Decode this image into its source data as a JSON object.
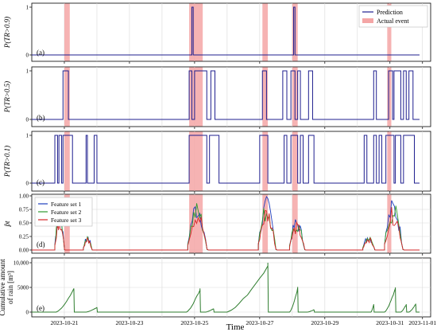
{
  "figure": {
    "xlabel": "Time",
    "x_ticks": [
      "2023-10-21",
      "2023-10-23",
      "2023-10-25",
      "2023-10-27",
      "2023-10-29",
      "2023-10-31",
      "2023-11-01"
    ],
    "x_range": [
      "2023-10-20 00:00",
      "2023-11-01 06:00"
    ]
  },
  "colors": {
    "prediction": "#1f1f8f",
    "event_band": "#f4a6a6",
    "set1": "#1f3fbf",
    "set2": "#2e9a2e",
    "set3": "#d62728",
    "rain": "#2e7d2e",
    "grid": "#d9d9d9"
  },
  "chart_data": [
    {
      "type": "line",
      "panel_label": "(a)",
      "ylabel": "P(TR>0.9)",
      "ylim": [
        0,
        1
      ],
      "y_ticks": [
        "0",
        "1"
      ],
      "legend": {
        "placement": "top-right",
        "entries": [
          "Prediction",
          "Actual event"
        ]
      },
      "event_bands": [
        [
          "10-21 00:00",
          "10-21 04:00"
        ],
        [
          "10-24 20:00",
          "10-25 06:00"
        ],
        [
          "10-27 02:00",
          "10-27 06:00"
        ],
        [
          "10-28 00:00",
          "10-28 04:00"
        ],
        [
          "10-30 22:00",
          "10-31 01:00"
        ]
      ],
      "steps": [
        [
          "10-24 22:00",
          "10-24 23:00"
        ],
        [
          "10-28 01:00",
          "10-28 02:00"
        ]
      ]
    },
    {
      "type": "line",
      "panel_label": "(b)",
      "ylabel": "P(TR>0.5)",
      "ylim": [
        0,
        1
      ],
      "y_ticks": [
        "0",
        "1"
      ],
      "event_bands": [
        [
          "10-21 00:00",
          "10-21 04:00"
        ],
        [
          "10-24 20:00",
          "10-25 06:00"
        ],
        [
          "10-27 02:00",
          "10-27 06:00"
        ],
        [
          "10-28 00:00",
          "10-28 04:00"
        ],
        [
          "10-30 22:00",
          "10-31 01:00"
        ]
      ],
      "steps": [
        [
          "10-20 23:00",
          "10-21 03:00"
        ],
        [
          "10-24 20:00",
          "10-24 22:00"
        ],
        [
          "10-25 00:00",
          "10-25 09:00"
        ],
        [
          "10-25 12:00",
          "10-25 15:00"
        ],
        [
          "10-27 02:00",
          "10-27 05:00"
        ],
        [
          "10-27 17:00",
          "10-27 20:00"
        ],
        [
          "10-27 23:00",
          "10-28 02:00"
        ],
        [
          "10-28 04:00",
          "10-28 06:00"
        ],
        [
          "10-28 12:00",
          "10-28 15:00"
        ],
        [
          "10-30 12:00",
          "10-30 14:00"
        ],
        [
          "10-30 23:00",
          "10-31 02:00"
        ],
        [
          "10-31 03:00",
          "10-31 08:00"
        ],
        [
          "10-31 10:00",
          "10-31 12:00"
        ],
        [
          "10-31 14:00",
          "10-31 17:00"
        ]
      ]
    },
    {
      "type": "line",
      "panel_label": "(c)",
      "ylabel": "P(TR>0.1)",
      "ylim": [
        0,
        1
      ],
      "y_ticks": [
        "0",
        "1"
      ],
      "event_bands": [
        [
          "10-21 00:00",
          "10-21 04:00"
        ],
        [
          "10-24 20:00",
          "10-25 06:00"
        ],
        [
          "10-27 02:00",
          "10-27 06:00"
        ],
        [
          "10-28 00:00",
          "10-28 04:00"
        ],
        [
          "10-30 22:00",
          "10-31 01:00"
        ]
      ],
      "steps": [
        [
          "10-20 17:00",
          "10-20 19:00"
        ],
        [
          "10-20 20:00",
          "10-20 22:00"
        ],
        [
          "10-20 23:00",
          "10-21 06:00"
        ],
        [
          "10-21 16:00",
          "10-21 17:00"
        ],
        [
          "10-21 22:00",
          "10-22 00:00"
        ],
        [
          "10-24 20:00",
          "10-25 09:00"
        ],
        [
          "10-25 11:00",
          "10-25 18:00"
        ],
        [
          "10-27 00:00",
          "10-27 06:00"
        ],
        [
          "10-27 18:00",
          "10-27 20:00"
        ],
        [
          "10-27 23:00",
          "10-28 04:00"
        ],
        [
          "10-28 06:00",
          "10-28 08:00"
        ],
        [
          "10-28 12:00",
          "10-28 16:00"
        ],
        [
          "10-30 05:00",
          "10-30 07:00"
        ],
        [
          "10-30 12:00",
          "10-30 14:00"
        ],
        [
          "10-30 16:00",
          "10-30 18:00"
        ],
        [
          "10-30 21:00",
          "10-31 03:00"
        ],
        [
          "10-31 04:00",
          "10-31 08:00"
        ],
        [
          "10-31 10:00",
          "10-31 18:00"
        ]
      ]
    },
    {
      "type": "line",
      "panel_label": "(d)",
      "ylabel": "p̂t",
      "ylim": [
        0,
        1
      ],
      "y_ticks": [
        "0.00",
        "0.25",
        "0.50",
        "0.75",
        "1.00"
      ],
      "grid": true,
      "legend": {
        "placement": "top-left",
        "entries": [
          "Feature set 1",
          "Feature set 2",
          "Feature set 3"
        ]
      },
      "event_bands": [
        [
          "10-21 00:00",
          "10-21 04:00"
        ],
        [
          "10-24 20:00",
          "10-25 06:00"
        ],
        [
          "10-27 02:00",
          "10-27 06:00"
        ],
        [
          "10-28 00:00",
          "10-28 04:00"
        ],
        [
          "10-30 22:00",
          "10-31 01:00"
        ]
      ],
      "bursts": [
        {
          "start": "10-20 17:00",
          "end": "10-21 05:00",
          "peak": 0.82
        },
        {
          "start": "10-21 14:00",
          "end": "10-22 01:00",
          "peak": 0.28
        },
        {
          "start": "10-24 19:00",
          "end": "10-25 19:00",
          "peak": 0.98
        },
        {
          "start": "10-26 23:00",
          "end": "10-27 21:00",
          "peak": 1.0
        },
        {
          "start": "10-27 22:00",
          "end": "10-28 17:00",
          "peak": 0.62
        },
        {
          "start": "10-30 04:00",
          "end": "10-30 19:00",
          "peak": 0.3
        },
        {
          "start": "10-30 20:00",
          "end": "10-31 19:00",
          "peak": 0.98
        }
      ]
    },
    {
      "type": "line",
      "panel_label": "(e)",
      "ylabel": "Cumulative amount of rain [m³]",
      "ylim": [
        0,
        10000
      ],
      "y_ticks": [
        "0",
        "5000",
        "10,000"
      ],
      "grid": true,
      "events": [
        {
          "start": "10-20 18:00",
          "end": "10-21 07:00",
          "peak": 4800
        },
        {
          "start": "10-21 16:00",
          "end": "10-22 00:00",
          "peak": 1000
        },
        {
          "start": "10-24 18:00",
          "end": "10-25 04:00",
          "peak": 4800
        },
        {
          "start": "10-25 08:00",
          "end": "10-25 14:00",
          "peak": 700
        },
        {
          "start": "10-26 00:00",
          "end": "10-27 06:00",
          "peak": 10000
        },
        {
          "start": "10-27 22:00",
          "end": "10-28 04:00",
          "peak": 5100
        },
        {
          "start": "10-28 11:00",
          "end": "10-28 16:00",
          "peak": 500
        },
        {
          "start": "10-30 10:00",
          "end": "10-30 12:00",
          "peak": 1600
        },
        {
          "start": "10-30 20:00",
          "end": "10-31 04:00",
          "peak": 5000
        },
        {
          "start": "10-31 08:00",
          "end": "10-31 12:00",
          "peak": 1600
        },
        {
          "start": "10-31 14:00",
          "end": "10-31 19:00",
          "peak": 1700
        }
      ]
    }
  ]
}
